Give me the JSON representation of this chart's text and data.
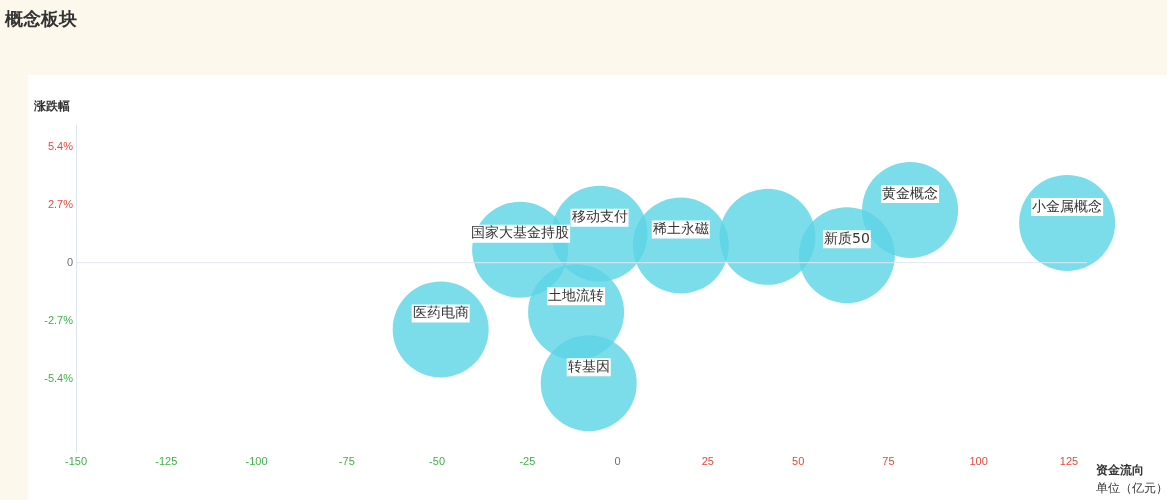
{
  "chart_data": {
    "type": "bubble",
    "title": "概念板块",
    "xlabel": "资金流向",
    "ylabel": "涨跌幅",
    "annotations": [
      "单位（亿元）"
    ],
    "series": [
      {
        "name": "国家大基金持股",
        "color": "#5bd5e5",
        "x": [
          -27
        ],
        "values": [
          0.6
        ],
        "sizes": [
          1
        ]
      },
      {
        "name": "移动支付",
        "color": "#5bd5e5",
        "x": [
          -5
        ],
        "values": [
          1.35
        ],
        "sizes": [
          1
        ]
      },
      {
        "name": "稀土永磁",
        "color": "#5bd5e5",
        "x": [
          17.5
        ],
        "values": [
          0.8
        ],
        "sizes": [
          1
        ]
      },
      {
        "color": "#5bd5e5",
        "x": [
          41.5
        ],
        "values": [
          1.2
        ],
        "sizes": [
          1
        ]
      },
      {
        "name": "新质50",
        "color": "#5bd5e5",
        "x": [
          63.5
        ],
        "values": [
          0.35
        ],
        "sizes": [
          1
        ]
      },
      {
        "name": "黄金概念",
        "color": "#5bd5e5",
        "x": [
          81
        ],
        "values": [
          2.45
        ],
        "sizes": [
          1
        ]
      },
      {
        "name": "小金属概念",
        "color": "#5bd5e5",
        "x": [
          124.5
        ],
        "values": [
          1.85
        ],
        "sizes": [
          1
        ]
      },
      {
        "name": "医药电商",
        "color": "#5bd5e5",
        "x": [
          -49
        ],
        "values": [
          -3.1
        ],
        "sizes": [
          1
        ]
      },
      {
        "name": "土地流转",
        "color": "#5bd5e5",
        "x": [
          -11.5
        ],
        "values": [
          -2.3
        ],
        "sizes": [
          1
        ]
      },
      {
        "name": "转基因",
        "color": "#5bd5e5",
        "x": [
          -8
        ],
        "values": [
          -5.6
        ],
        "sizes": [
          1
        ]
      }
    ],
    "xlim": [
      -150,
      130
    ],
    "xticks": [
      -150,
      -125,
      -100,
      -75,
      -50,
      -25,
      0,
      25,
      50,
      75,
      100,
      125
    ],
    "ylim": [
      -8.8,
      6.4
    ],
    "yticks": [
      {
        "value": 5.4,
        "label": "5.4%"
      },
      {
        "value": 2.7,
        "label": "2.7%"
      },
      0,
      {
        "value": -2.7,
        "label": "-2.7%"
      },
      {
        "value": -5.4,
        "label": "-5.4%"
      }
    ],
    "ref_lines": [
      {
        "axis": "y",
        "value": 0,
        "color": "#e0e6f1"
      }
    ],
    "grid": false,
    "legend": false
  }
}
